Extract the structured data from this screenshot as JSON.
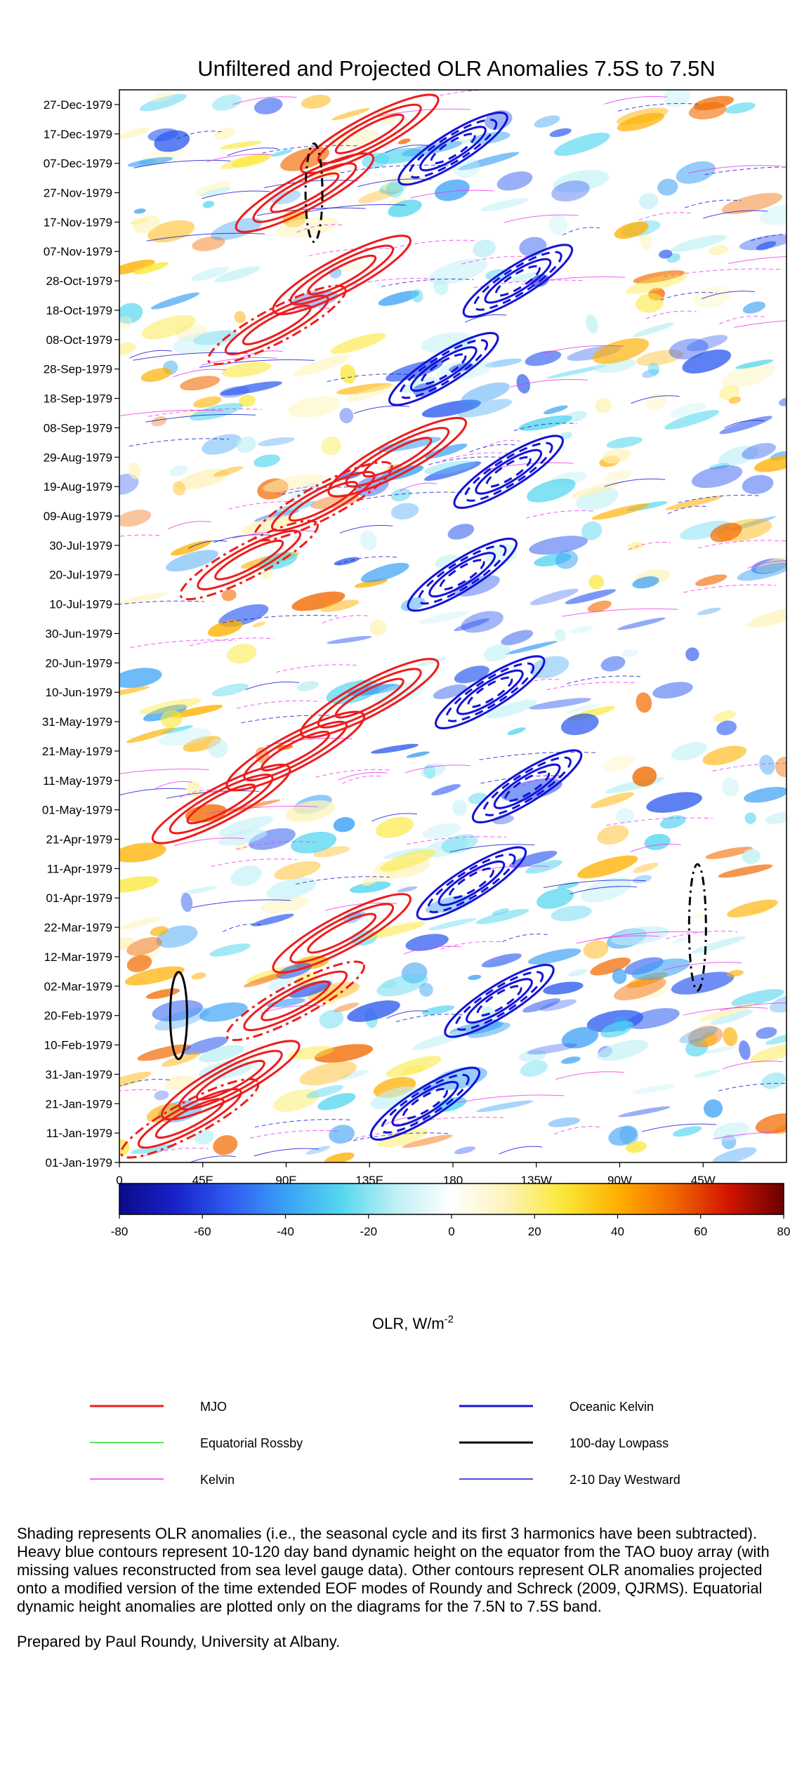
{
  "chart_data": {
    "type": "heatmap",
    "title": "Unfiltered and Projected OLR Anomalies 7.5S to 7.5N",
    "x_axis": {
      "ticks": [
        {
          "label": "0",
          "lon": 0
        },
        {
          "label": "45E",
          "lon": 45
        },
        {
          "label": "90E",
          "lon": 90
        },
        {
          "label": "135E",
          "lon": 135
        },
        {
          "label": "180",
          "lon": 180
        },
        {
          "label": "135W",
          "lon": 225
        },
        {
          "label": "90W",
          "lon": 270
        },
        {
          "label": "45W",
          "lon": 315
        }
      ],
      "range": [
        0,
        360
      ]
    },
    "y_axis": {
      "ticks": [
        "01-Jan-1979",
        "11-Jan-1979",
        "21-Jan-1979",
        "31-Jan-1979",
        "10-Feb-1979",
        "20-Feb-1979",
        "02-Mar-1979",
        "12-Mar-1979",
        "22-Mar-1979",
        "01-Apr-1979",
        "11-Apr-1979",
        "21-Apr-1979",
        "01-May-1979",
        "11-May-1979",
        "21-May-1979",
        "31-May-1979",
        "10-Jun-1979",
        "20-Jun-1979",
        "30-Jun-1979",
        "10-Jul-1979",
        "20-Jul-1979",
        "30-Jul-1979",
        "09-Aug-1979",
        "19-Aug-1979",
        "29-Aug-1979",
        "08-Sep-1979",
        "18-Sep-1979",
        "28-Sep-1979",
        "08-Oct-1979",
        "18-Oct-1979",
        "28-Oct-1979",
        "07-Nov-1979",
        "17-Nov-1979",
        "27-Nov-1979",
        "07-Dec-1979",
        "17-Dec-1979",
        "27-Dec-1979"
      ],
      "range": [
        "01-Jan-1979",
        "31-Dec-1979"
      ]
    },
    "colorbar": {
      "ticks": [
        "-80",
        "-60",
        "-40",
        "-20",
        "0",
        "20",
        "40",
        "60",
        "80"
      ],
      "range": [
        -80,
        80
      ],
      "label": "OLR, W/m",
      "label_sup": "-2",
      "colors": [
        "#0b0b8a",
        "#1722c8",
        "#2f5cf0",
        "#3aa0f5",
        "#55d6f0",
        "#bff0f5",
        "#ffffff",
        "#fdf3b8",
        "#fbe83a",
        "#ffb000",
        "#f26a00",
        "#d21400",
        "#6b0000"
      ]
    },
    "legend": [
      {
        "label": "MJO",
        "color": "#ee1c1c",
        "width": 3
      },
      {
        "label": "Oceanic Kelvin",
        "color": "#1313d8",
        "width": 3
      },
      {
        "label": "Equatorial Rossby",
        "color": "#22dd22",
        "width": 1.5
      },
      {
        "label": "100-day Lowpass",
        "color": "#000000",
        "width": 3
      },
      {
        "label": "Kelvin",
        "color": "#ee33ee",
        "width": 1.5
      },
      {
        "label": "2-10 Day Westward",
        "color": "#1313d8",
        "width": 1.5
      }
    ],
    "mjo_contour_days": [
      {
        "lon": 38,
        "day": 15
      },
      {
        "lon": 60,
        "day": 28
      },
      {
        "lon": 95,
        "day": 55
      },
      {
        "lon": 120,
        "day": 78
      },
      {
        "lon": 55,
        "day": 122
      },
      {
        "lon": 95,
        "day": 140
      },
      {
        "lon": 135,
        "day": 158
      },
      {
        "lon": 70,
        "day": 205
      },
      {
        "lon": 110,
        "day": 225
      },
      {
        "lon": 150,
        "day": 240
      },
      {
        "lon": 85,
        "day": 285
      },
      {
        "lon": 120,
        "day": 302
      },
      {
        "lon": 100,
        "day": 330
      },
      {
        "lon": 135,
        "day": 350
      }
    ],
    "kelvin_contour_days": [
      {
        "lon": 165,
        "day": 20
      },
      {
        "lon": 205,
        "day": 55
      },
      {
        "lon": 190,
        "day": 95
      },
      {
        "lon": 220,
        "day": 128
      },
      {
        "lon": 200,
        "day": 160
      },
      {
        "lon": 185,
        "day": 200
      },
      {
        "lon": 210,
        "day": 235
      },
      {
        "lon": 175,
        "day": 270
      },
      {
        "lon": 215,
        "day": 300
      },
      {
        "lon": 180,
        "day": 345
      }
    ]
  },
  "caption": {
    "description": "Shading represents OLR anomalies (i.e., the seasonal cycle and its first 3 harmonics have been subtracted). Heavy blue contours represent 10-120 day band dynamic height on the equator from the TAO buoy array (with missing values reconstructed from sea level gauge data). Other contours represent OLR anomalies projected onto a modified version of the time extended EOF modes of Roundy and Schreck (2009, QJRMS). Equatorial dynamic height anomalies are plotted only on the diagrams for the 7.5N to 7.5S band.",
    "credit": "Prepared by Paul Roundy, University at Albany."
  }
}
